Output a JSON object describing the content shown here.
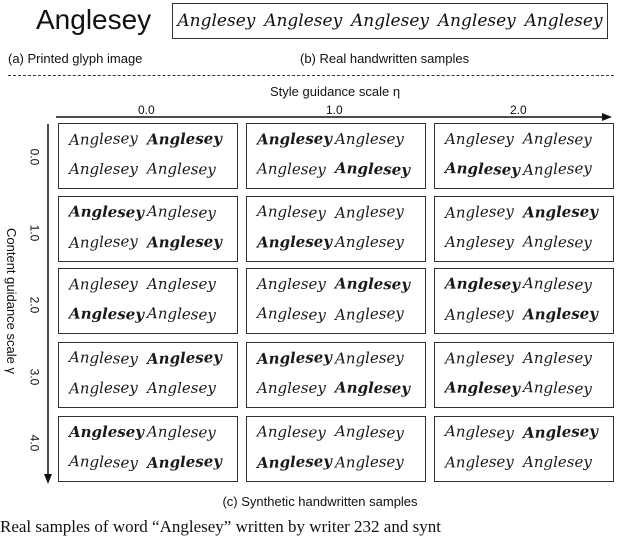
{
  "printed_word": "Anglesey",
  "captions": {
    "a": "(a) Printed glyph image",
    "b": "(b) Real handwritten samples",
    "c": "(c) Synthetic handwritten samples"
  },
  "real_samples": [
    "Anglesey",
    "Anglesey",
    "Anglesey",
    "Anglesey",
    "Anglesey"
  ],
  "x_axis": {
    "title": "Style guidance scale η",
    "ticks": [
      "0.0",
      "1.0",
      "2.0"
    ]
  },
  "y_axis": {
    "title": "Content guidance scale γ",
    "ticks": [
      "0.0",
      "1.0",
      "2.0",
      "3.0",
      "4.0"
    ]
  },
  "sample_word": "Anglesey",
  "bottom_text": "Real samples of word “Anglesey” written by writer 232 and synt"
}
